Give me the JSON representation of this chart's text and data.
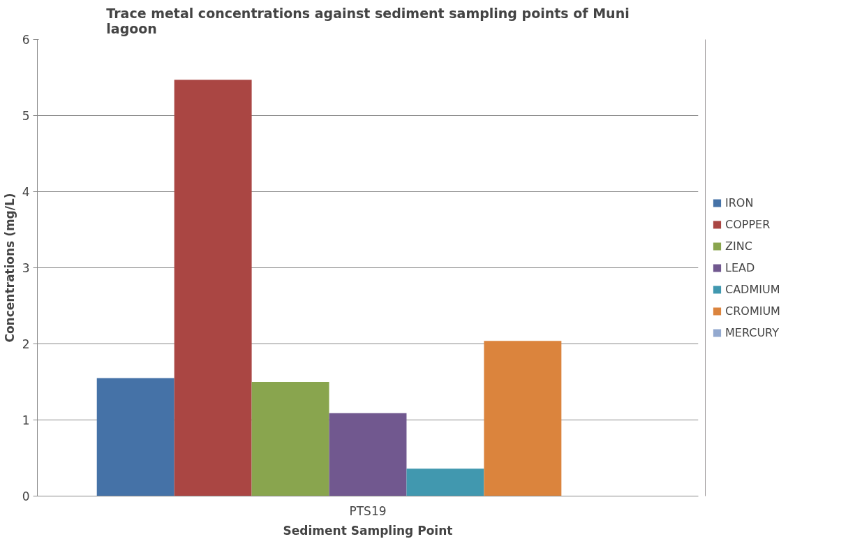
{
  "chart_data": {
    "type": "bar",
    "title": "Trace metal concentrations against sediment sampling points of Muni lagoon",
    "xlabel": "Sediment Sampling Point",
    "ylabel": "Concentrations (mg/L)",
    "categories": [
      "PTS19"
    ],
    "series": [
      {
        "name": "IRON",
        "color": "#4572a7",
        "values": [
          1.55
        ]
      },
      {
        "name": "COPPER",
        "color": "#aa4643",
        "values": [
          5.47
        ]
      },
      {
        "name": "ZINC",
        "color": "#89a54e",
        "values": [
          1.5
        ]
      },
      {
        "name": "LEAD",
        "color": "#71588f",
        "values": [
          1.09
        ]
      },
      {
        "name": "CADMIUM",
        "color": "#4198af",
        "values": [
          0.36
        ]
      },
      {
        "name": "CROMIUM",
        "color": "#db843d",
        "values": [
          2.04
        ]
      },
      {
        "name": "MERCURY",
        "color": "#93a9cf",
        "values": [
          0
        ]
      }
    ],
    "ylim": [
      0,
      6
    ],
    "yticks": [
      0,
      1,
      2,
      3,
      4,
      5,
      6
    ],
    "grid": "y",
    "legend": "right"
  }
}
